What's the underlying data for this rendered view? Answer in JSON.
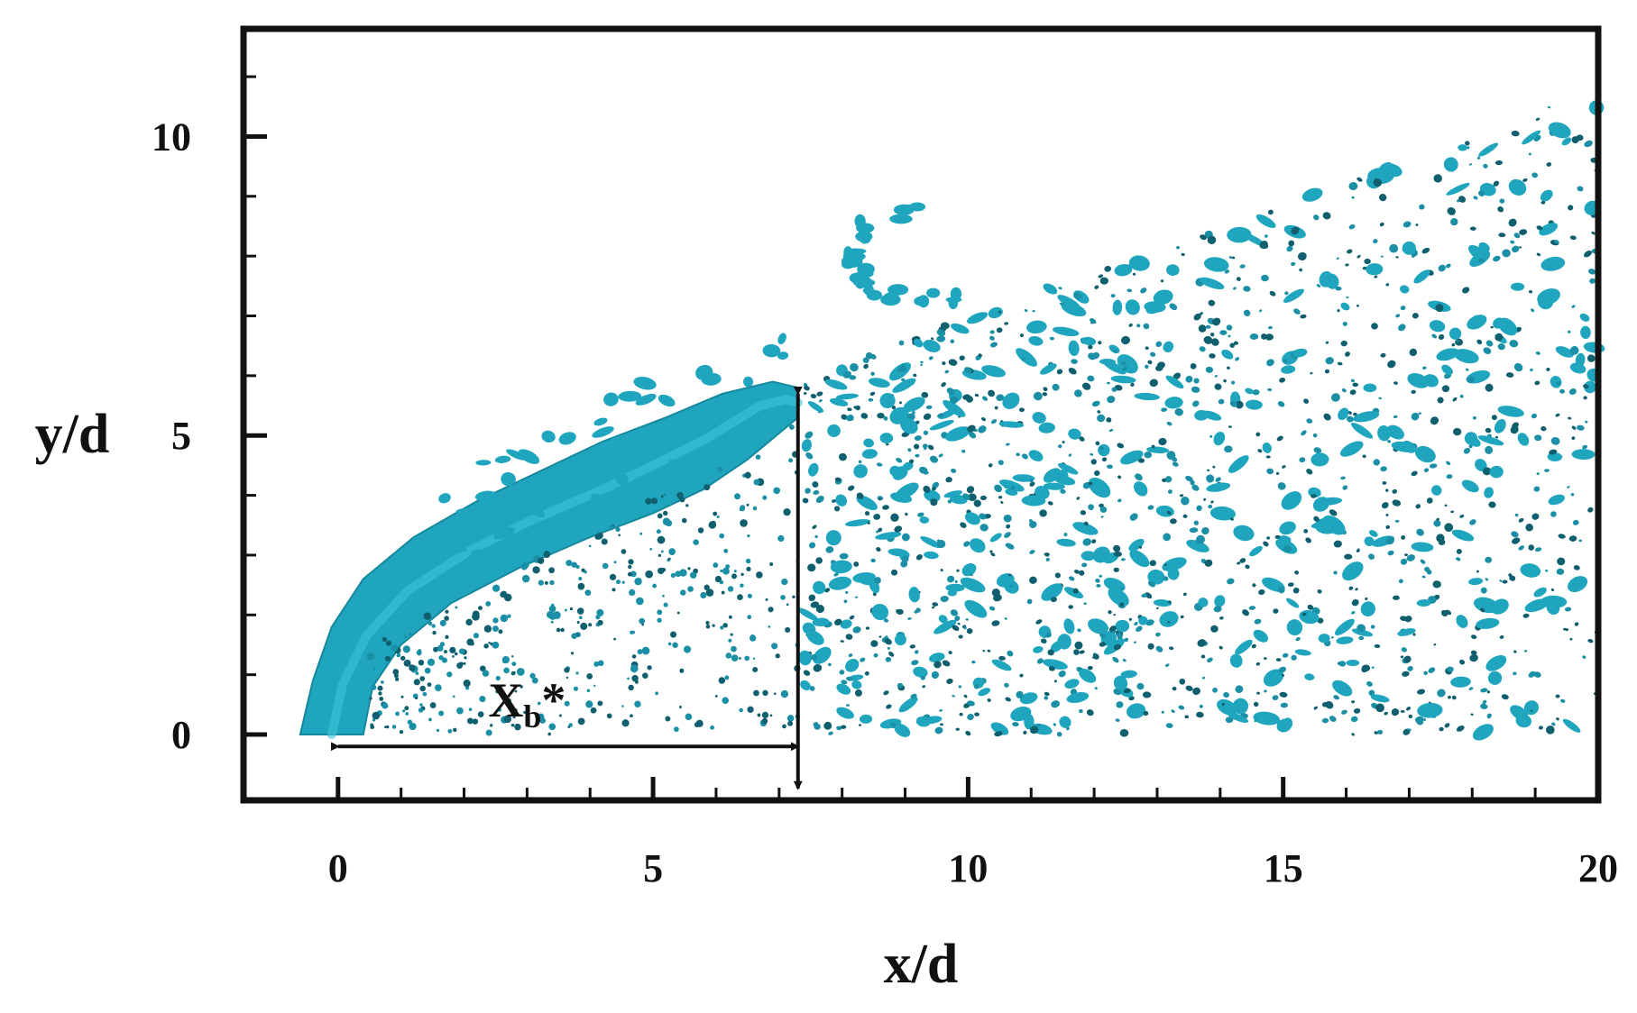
{
  "chart_data": {
    "type": "scatter",
    "title": "",
    "xlabel": "x/d",
    "ylabel": "y/d",
    "xlim": [
      -1.5,
      20
    ],
    "ylim": [
      -1.1,
      11.8
    ],
    "xticks": [
      0,
      5,
      10,
      15,
      20
    ],
    "yticks": [
      0,
      5,
      10
    ],
    "x_minor_step": 1,
    "y_minor_step": 1,
    "grid": false,
    "legend": "none",
    "colors": {
      "plume": "#1fa6be",
      "droplet": "#1b8fa5",
      "axis": "#111111"
    },
    "liquid_column": {
      "description": "continuous jet column from injector up to breakup",
      "lower_edge": [
        [
          0.4,
          0
        ],
        [
          0.55,
          0.8
        ],
        [
          1.0,
          1.5
        ],
        [
          1.8,
          2.2
        ],
        [
          2.9,
          2.8
        ],
        [
          4.0,
          3.3
        ],
        [
          5.0,
          3.7
        ],
        [
          5.8,
          4.1
        ],
        [
          6.5,
          4.6
        ],
        [
          7.3,
          5.3
        ]
      ],
      "upper_edge": [
        [
          -0.6,
          0
        ],
        [
          -0.4,
          0.9
        ],
        [
          -0.1,
          1.8
        ],
        [
          0.4,
          2.6
        ],
        [
          1.2,
          3.3
        ],
        [
          2.2,
          3.9
        ],
        [
          3.2,
          4.4
        ],
        [
          4.2,
          4.9
        ],
        [
          5.2,
          5.3
        ],
        [
          6.1,
          5.7
        ],
        [
          6.9,
          5.9
        ],
        [
          7.3,
          5.8
        ]
      ]
    },
    "droplet_region": {
      "description": "dispersed droplets downstream of breakup",
      "x_range": [
        7.4,
        20
      ],
      "y_range": [
        0,
        10.7
      ]
    },
    "breakup_marker": {
      "x": 7.3,
      "y_top": 5.7,
      "y_bottom": -0.9,
      "horizontal_arrow": {
        "x_from": 0,
        "x_to": 7.3,
        "y": -0.2
      }
    },
    "annotations": [
      {
        "text": "X",
        "subscript": "b",
        "suffix": "*",
        "x": 3.0,
        "y": 0.3
      }
    ]
  }
}
